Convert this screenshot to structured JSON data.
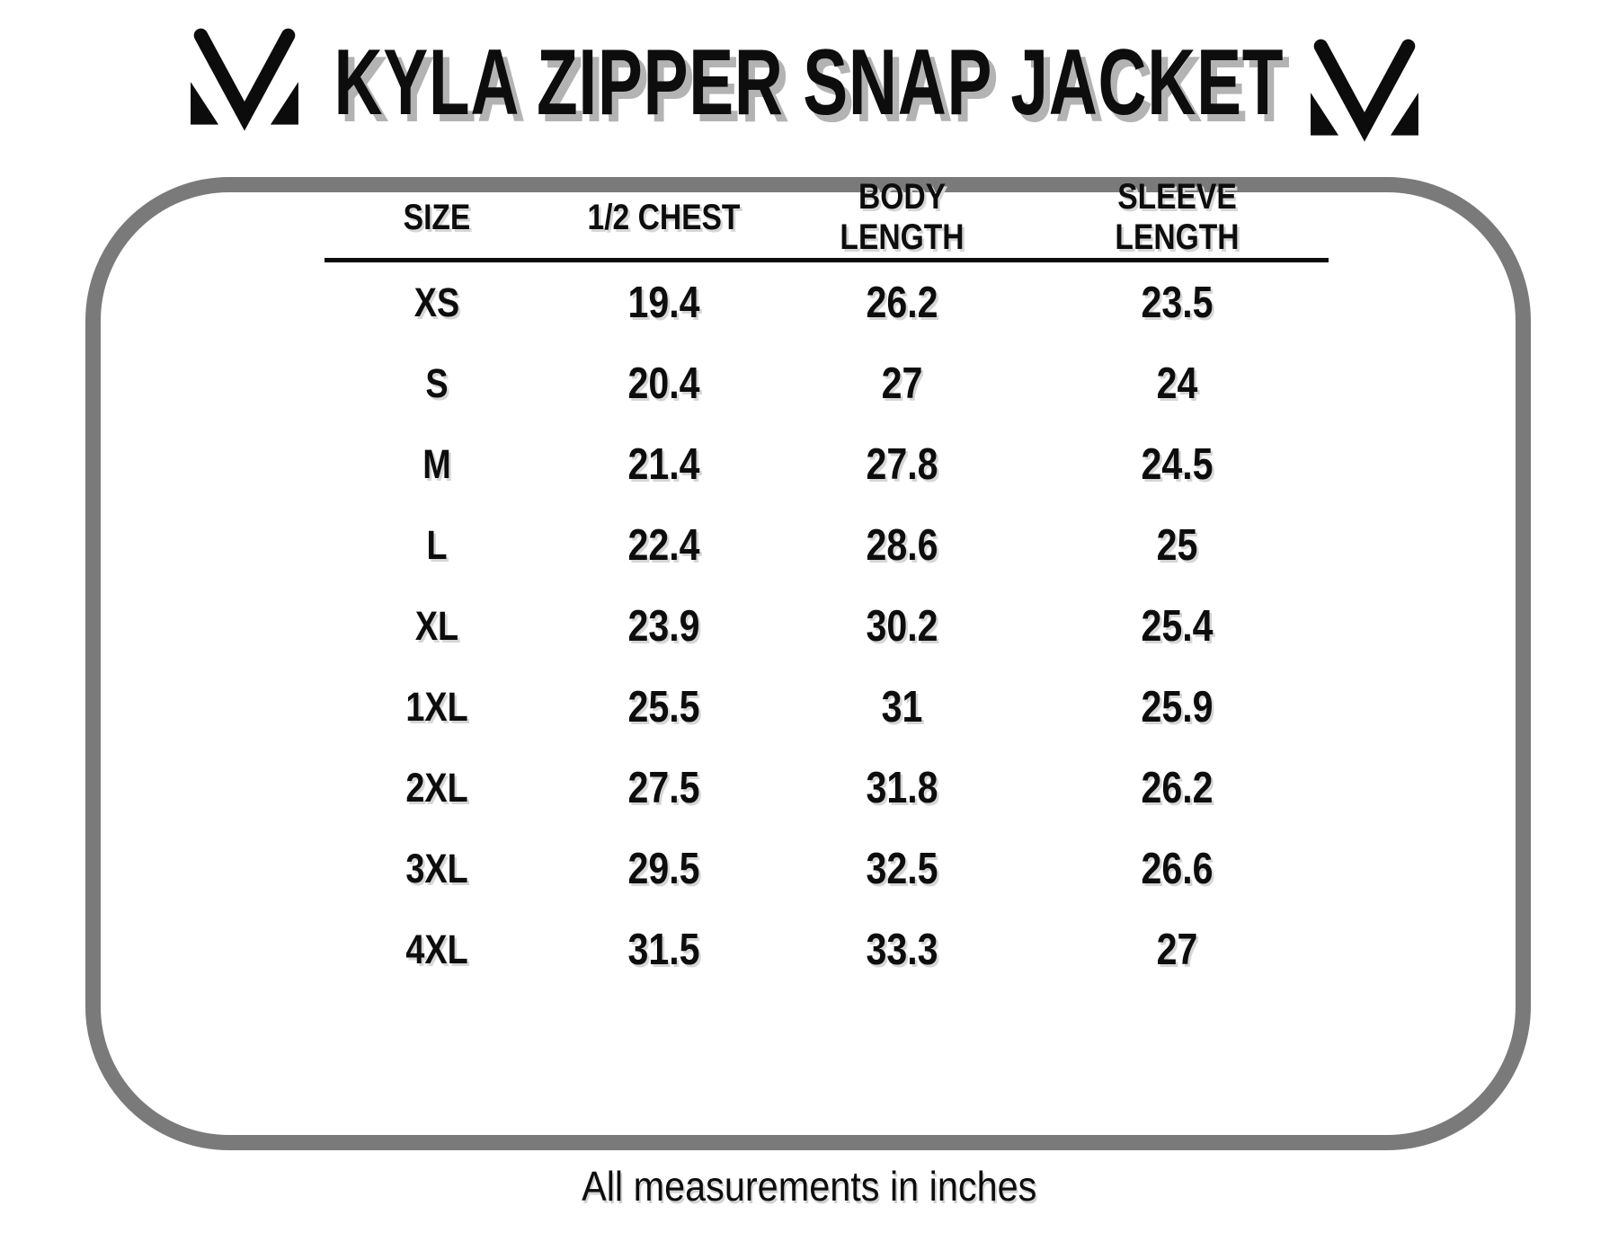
{
  "chart_data": {
    "type": "table",
    "title": "KYLA ZIPPER SNAP JACKET",
    "columns": [
      {
        "label": "SIZE",
        "lines": [
          "SIZE"
        ]
      },
      {
        "label": "1/2 CHEST",
        "lines": [
          "1/2 CHEST"
        ]
      },
      {
        "label": "BODY LENGTH",
        "lines": [
          "BODY",
          "LENGTH"
        ]
      },
      {
        "label": "SLEEVE LENGTH",
        "lines": [
          "SLEEVE",
          "LENGTH"
        ]
      }
    ],
    "rows": [
      [
        "XS",
        19.4,
        26.2,
        23.5
      ],
      [
        "S",
        20.4,
        27,
        24
      ],
      [
        "M",
        21.4,
        27.8,
        24.5
      ],
      [
        "L",
        22.4,
        28.6,
        25
      ],
      [
        "XL",
        23.9,
        30.2,
        25.4
      ],
      [
        "1XL",
        25.5,
        31,
        25.9
      ],
      [
        "2XL",
        27.5,
        31.8,
        26.2
      ],
      [
        "3XL",
        29.5,
        32.5,
        26.6
      ],
      [
        "4XL",
        31.5,
        33.3,
        27
      ]
    ],
    "footnote": "All measurements in inches",
    "units": "inches",
    "layout": {
      "grid": false,
      "header_rule": true
    }
  },
  "logos": {
    "left": "mv-monogram",
    "right": "mv-monogram"
  },
  "colors": {
    "background": "#ffffff",
    "text": "#0d0d0d",
    "frame_border": "#7a7a7a",
    "title_shadow": "#b3b3b3",
    "table_shadow": "#d6d6d6"
  }
}
